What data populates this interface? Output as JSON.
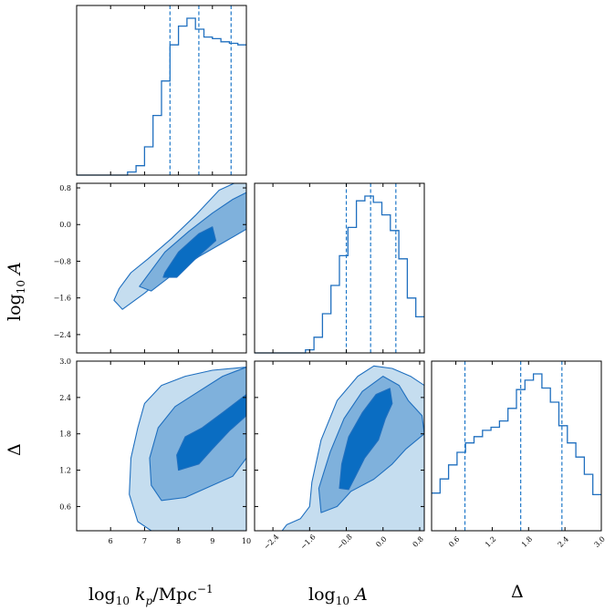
{
  "chart_data": {
    "type": "corner",
    "parameters": [
      {
        "key": "kp",
        "label_main": "log",
        "label_sub": "10",
        "label_var": "k",
        "label_var_sub": "p",
        "label_rest": "/Mpc",
        "label_sup": "−1",
        "range": [
          5,
          10
        ],
        "ticks": [
          6,
          7,
          8,
          9,
          10
        ],
        "tick_labels": [
          "6",
          "7",
          "8",
          "9",
          "10"
        ],
        "quantiles": [
          7.75,
          8.6,
          9.55
        ]
      },
      {
        "key": "logA",
        "label_main": "log",
        "label_sub": "10",
        "label_var": "A",
        "range": [
          -2.8,
          0.9
        ],
        "ticks": [
          -2.4,
          -1.6,
          -0.8,
          0.0,
          0.8
        ],
        "tick_labels": [
          "−2.4",
          "−1.6",
          "−0.8",
          "0.0",
          "0.8"
        ],
        "quantiles": [
          -0.8,
          -0.27,
          0.28
        ]
      },
      {
        "key": "delta",
        "label_var": "Δ",
        "range": [
          0.2,
          3.0
        ],
        "ticks": [
          0.6,
          1.2,
          1.8,
          2.4,
          3.0
        ],
        "tick_labels": [
          "0.6",
          "1.2",
          "1.8",
          "2.4",
          "3.0"
        ],
        "quantiles": [
          0.75,
          1.67,
          2.35
        ]
      }
    ],
    "histograms": [
      {
        "param": "kp",
        "bin_edges": [
          5.0,
          5.25,
          5.5,
          5.75,
          6.0,
          6.25,
          6.5,
          6.75,
          7.0,
          7.25,
          7.5,
          7.75,
          8.0,
          8.25,
          8.5,
          8.75,
          9.0,
          9.25,
          9.5,
          9.75,
          10.0
        ],
        "heights": [
          0.0,
          0.0,
          0.0,
          0.0,
          0.0,
          0.0,
          0.02,
          0.06,
          0.18,
          0.38,
          0.6,
          0.83,
          0.95,
          1.0,
          0.93,
          0.88,
          0.87,
          0.85,
          0.84,
          0.83
        ]
      },
      {
        "param": "logA",
        "bin_edges": [
          -2.8,
          -2.615,
          -2.43,
          -2.245,
          -2.06,
          -1.875,
          -1.69,
          -1.505,
          -1.32,
          -1.135,
          -0.95,
          -0.765,
          -0.58,
          -0.395,
          -0.21,
          -0.025,
          0.16,
          0.345,
          0.53,
          0.715,
          0.9
        ],
        "heights": [
          0.0,
          0.0,
          0.0,
          0.0,
          0.0,
          0.0,
          0.02,
          0.1,
          0.25,
          0.43,
          0.62,
          0.8,
          0.97,
          1.0,
          0.96,
          0.88,
          0.78,
          0.6,
          0.35,
          0.23
        ]
      },
      {
        "param": "delta",
        "bin_edges": [
          0.2,
          0.34,
          0.48,
          0.62,
          0.76,
          0.9,
          1.04,
          1.18,
          1.32,
          1.46,
          1.6,
          1.74,
          1.88,
          2.02,
          2.16,
          2.3,
          2.44,
          2.58,
          2.72,
          2.86,
          3.0
        ],
        "heights": [
          0.24,
          0.33,
          0.42,
          0.5,
          0.56,
          0.6,
          0.64,
          0.66,
          0.7,
          0.78,
          0.9,
          0.96,
          1.0,
          0.91,
          0.82,
          0.67,
          0.56,
          0.47,
          0.36,
          0.23
        ]
      }
    ],
    "contours_2d": [
      {
        "x": "kp",
        "y": "logA",
        "levels": [
          {
            "level": "2-sigma",
            "color": "#c5ddef",
            "points": [
              [
                6.25,
                -1.4
              ],
              [
                6.1,
                -1.65
              ],
              [
                6.35,
                -1.85
              ],
              [
                7.0,
                -1.5
              ],
              [
                7.8,
                -1.0
              ],
              [
                8.6,
                -0.55
              ],
              [
                9.4,
                -0.15
              ],
              [
                10.0,
                0.1
              ],
              [
                10.0,
                0.92
              ],
              [
                9.7,
                0.92
              ],
              [
                9.2,
                0.75
              ],
              [
                8.5,
                0.2
              ],
              [
                7.8,
                -0.3
              ],
              [
                7.1,
                -0.75
              ],
              [
                6.6,
                -1.05
              ]
            ]
          },
          {
            "level": "1-sigma",
            "color": "#7fb1dc",
            "points": [
              [
                7.0,
                -1.2
              ],
              [
                6.85,
                -1.35
              ],
              [
                7.2,
                -1.45
              ],
              [
                7.9,
                -1.05
              ],
              [
                8.6,
                -0.7
              ],
              [
                9.3,
                -0.4
              ],
              [
                10.0,
                -0.1
              ],
              [
                10.0,
                0.7
              ],
              [
                9.6,
                0.55
              ],
              [
                9.0,
                0.25
              ],
              [
                8.3,
                -0.15
              ],
              [
                7.6,
                -0.6
              ]
            ]
          },
          {
            "level": "0.5-sigma",
            "color": "#0a6dc2",
            "points": [
              [
                7.6,
                -1.05
              ],
              [
                7.55,
                -1.15
              ],
              [
                7.95,
                -1.15
              ],
              [
                8.5,
                -0.75
              ],
              [
                9.1,
                -0.35
              ],
              [
                9.0,
                -0.05
              ],
              [
                8.6,
                -0.2
              ],
              [
                8.0,
                -0.6
              ]
            ]
          }
        ]
      },
      {
        "x": "kp",
        "y": "delta",
        "levels": [
          {
            "level": "2-sigma",
            "color": "#c5ddef",
            "points": [
              [
                7.2,
                0.2
              ],
              [
                6.8,
                0.35
              ],
              [
                6.55,
                0.8
              ],
              [
                6.6,
                1.4
              ],
              [
                6.8,
                1.9
              ],
              [
                7.0,
                2.3
              ],
              [
                7.5,
                2.6
              ],
              [
                8.2,
                2.75
              ],
              [
                9.0,
                2.85
              ],
              [
                10.0,
                2.9
              ],
              [
                10.0,
                0.2
              ]
            ]
          },
          {
            "level": "1-sigma",
            "color": "#7fb1dc",
            "points": [
              [
                7.5,
                0.7
              ],
              [
                7.2,
                0.95
              ],
              [
                7.15,
                1.4
              ],
              [
                7.4,
                1.9
              ],
              [
                7.9,
                2.25
              ],
              [
                8.6,
                2.5
              ],
              [
                9.3,
                2.75
              ],
              [
                10.0,
                2.9
              ],
              [
                10.0,
                1.4
              ],
              [
                9.6,
                1.1
              ],
              [
                8.8,
                0.9
              ],
              [
                8.2,
                0.75
              ]
            ]
          },
          {
            "level": "0.5-sigma",
            "color": "#0a6dc2",
            "points": [
              [
                8.0,
                1.2
              ],
              [
                7.95,
                1.45
              ],
              [
                8.2,
                1.75
              ],
              [
                8.7,
                1.9
              ],
              [
                9.3,
                2.15
              ],
              [
                10.0,
                2.45
              ],
              [
                10.0,
                2.1
              ],
              [
                9.5,
                1.85
              ],
              [
                9.0,
                1.55
              ],
              [
                8.6,
                1.3
              ]
            ]
          }
        ]
      },
      {
        "x": "logA",
        "y": "delta",
        "levels": [
          {
            "level": "2-sigma",
            "color": "#c5ddef",
            "points": [
              [
                -2.2,
                0.2
              ],
              [
                -2.1,
                0.3
              ],
              [
                -1.8,
                0.4
              ],
              [
                -1.6,
                0.6
              ],
              [
                -1.55,
                1.0
              ],
              [
                -1.35,
                1.7
              ],
              [
                -1.0,
                2.35
              ],
              [
                -0.55,
                2.75
              ],
              [
                -0.2,
                2.92
              ],
              [
                0.2,
                2.88
              ],
              [
                0.6,
                2.75
              ],
              [
                0.9,
                2.6
              ],
              [
                0.9,
                0.2
              ]
            ]
          },
          {
            "level": "1-sigma",
            "color": "#7fb1dc",
            "points": [
              [
                -1.35,
                0.5
              ],
              [
                -1.4,
                0.9
              ],
              [
                -1.15,
                1.5
              ],
              [
                -0.85,
                2.05
              ],
              [
                -0.45,
                2.5
              ],
              [
                0.0,
                2.75
              ],
              [
                0.35,
                2.6
              ],
              [
                0.55,
                2.35
              ],
              [
                0.85,
                2.1
              ],
              [
                0.9,
                1.8
              ],
              [
                0.5,
                1.55
              ],
              [
                0.2,
                1.3
              ],
              [
                -0.2,
                1.05
              ],
              [
                -0.7,
                0.85
              ],
              [
                -1.0,
                0.6
              ]
            ]
          },
          {
            "level": "0.5-sigma",
            "color": "#0a6dc2",
            "points": [
              [
                -0.95,
                0.9
              ],
              [
                -0.9,
                1.3
              ],
              [
                -0.75,
                1.75
              ],
              [
                -0.45,
                2.15
              ],
              [
                -0.15,
                2.45
              ],
              [
                0.15,
                2.55
              ],
              [
                0.2,
                2.3
              ],
              [
                0.05,
                2.05
              ],
              [
                -0.1,
                1.7
              ],
              [
                -0.4,
                1.4
              ],
              [
                -0.6,
                1.1
              ],
              [
                -0.75,
                0.88
              ]
            ]
          }
        ]
      }
    ]
  }
}
